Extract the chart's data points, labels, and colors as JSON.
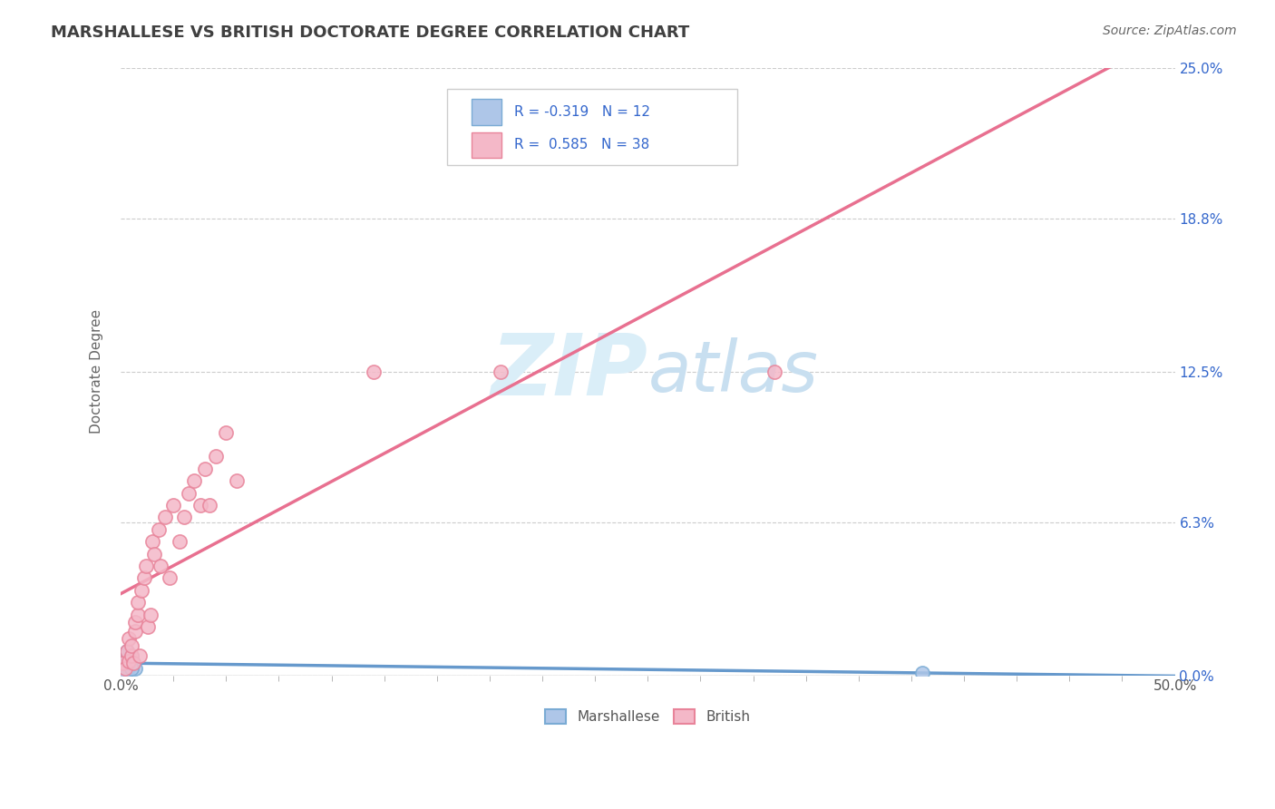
{
  "title": "MARSHALLESE VS BRITISH DOCTORATE DEGREE CORRELATION CHART",
  "source": "Source: ZipAtlas.com",
  "xlabel_marshallese": "Marshallese",
  "xlabel_british": "British",
  "ylabel": "Doctorate Degree",
  "xlim": [
    0.0,
    0.5
  ],
  "ylim": [
    0.0,
    0.25
  ],
  "xtick_labels": [
    "0.0%",
    "",
    "",
    "",
    "",
    "",
    "",
    "",
    "",
    "",
    "",
    "",
    "",
    "",
    "",
    "",
    "",
    "",
    "",
    "",
    "50.0%"
  ],
  "xtick_values": [
    0.0,
    0.025,
    0.05,
    0.075,
    0.1,
    0.125,
    0.15,
    0.175,
    0.2,
    0.225,
    0.25,
    0.275,
    0.3,
    0.325,
    0.35,
    0.375,
    0.4,
    0.425,
    0.45,
    0.475,
    0.5
  ],
  "ytick_labels_right": [
    "0.0%",
    "6.3%",
    "12.5%",
    "18.8%",
    "25.0%"
  ],
  "ytick_values": [
    0.0,
    0.063,
    0.125,
    0.188,
    0.25
  ],
  "marshallese_R": -0.319,
  "marshallese_N": 12,
  "british_R": 0.585,
  "british_N": 38,
  "marshallese_color": "#aec6e8",
  "british_color": "#f4b8c8",
  "marshallese_edge_color": "#7aabd4",
  "british_edge_color": "#e8849a",
  "marshallese_line_color": "#6699cc",
  "british_line_color": "#e87090",
  "legend_color": "#3366cc",
  "title_color": "#404040",
  "grid_color": "#cccccc",
  "watermark_color": "#daeef8",
  "background_color": "#ffffff",
  "marsh_x": [
    0.001,
    0.002,
    0.003,
    0.004,
    0.005,
    0.006,
    0.007,
    0.003,
    0.002,
    0.005,
    0.001,
    0.38
  ],
  "marsh_y": [
    0.008,
    0.005,
    0.01,
    0.006,
    0.008,
    0.005,
    0.003,
    0.002,
    0.0,
    0.003,
    0.005,
    0.001
  ],
  "brit_x": [
    0.001,
    0.002,
    0.003,
    0.004,
    0.004,
    0.005,
    0.005,
    0.006,
    0.007,
    0.007,
    0.008,
    0.008,
    0.009,
    0.01,
    0.011,
    0.012,
    0.013,
    0.014,
    0.015,
    0.016,
    0.018,
    0.019,
    0.021,
    0.023,
    0.025,
    0.028,
    0.03,
    0.032,
    0.035,
    0.038,
    0.04,
    0.042,
    0.045,
    0.05,
    0.055,
    0.12,
    0.18,
    0.31
  ],
  "brit_y": [
    0.005,
    0.003,
    0.01,
    0.006,
    0.015,
    0.008,
    0.012,
    0.005,
    0.018,
    0.022,
    0.025,
    0.03,
    0.008,
    0.035,
    0.04,
    0.045,
    0.02,
    0.025,
    0.055,
    0.05,
    0.06,
    0.045,
    0.065,
    0.04,
    0.07,
    0.055,
    0.065,
    0.075,
    0.08,
    0.07,
    0.085,
    0.07,
    0.09,
    0.1,
    0.08,
    0.125,
    0.125,
    0.125
  ]
}
